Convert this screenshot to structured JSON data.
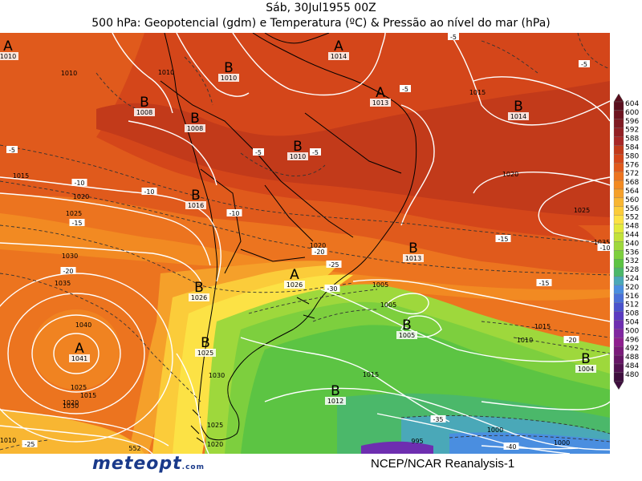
{
  "header": {
    "date": "Sáb, 30Jul1955 00Z",
    "subtitle": "500 hPa: Geopotencial (gdm) e Temperatura (ºC) & Pressão ao nível do mar (hPa)"
  },
  "footer": {
    "logo": "meteopt",
    "logo_suffix": ".com",
    "source": "NCEP/NCAR Reanalysis-1"
  },
  "legend": {
    "levels": [
      "604",
      "600",
      "596",
      "592",
      "588",
      "584",
      "580",
      "576",
      "572",
      "568",
      "564",
      "560",
      "556",
      "552",
      "548",
      "544",
      "540",
      "536",
      "532",
      "528",
      "524",
      "520",
      "516",
      "512",
      "508",
      "504",
      "500",
      "496",
      "492",
      "488",
      "484",
      "480"
    ],
    "colors": [
      "#5a0f1e",
      "#6d1420",
      "#801a22",
      "#932024",
      "#a82726",
      "#c23a1a",
      "#d4461a",
      "#e05a1c",
      "#ec741f",
      "#f28a22",
      "#f5a02a",
      "#f8b632",
      "#fbcc3a",
      "#fce245",
      "#e2ea3c",
      "#c2e23a",
      "#9ed83c",
      "#7dcf3e",
      "#5cc443",
      "#4bb86a",
      "#4aa8b8",
      "#4a8ee0",
      "#4a70d8",
      "#4a52cc",
      "#5a3ac0",
      "#6e2eb0",
      "#8026a0",
      "#8e1e8e",
      "#7a1a7a",
      "#661666",
      "#521252",
      "#3e0e3e"
    ]
  },
  "pressure_centers": [
    {
      "type": "A",
      "value": "1010"
    },
    {
      "type": "A",
      "value": "1014"
    },
    {
      "type": "B",
      "value": "1010"
    },
    {
      "type": "B",
      "value": "1008"
    },
    {
      "type": "B",
      "value": "1008"
    },
    {
      "type": "A",
      "value": "1013"
    },
    {
      "type": "B",
      "value": "1014"
    },
    {
      "type": "B",
      "value": "1010"
    },
    {
      "type": "B",
      "value": "1016"
    },
    {
      "type": "B",
      "value": "1013"
    },
    {
      "type": "A",
      "value": "1026"
    },
    {
      "type": "B",
      "value": "1026"
    },
    {
      "type": "B",
      "value": "1005"
    },
    {
      "type": "A",
      "value": "1041"
    },
    {
      "type": "B",
      "value": "1025"
    },
    {
      "type": "B",
      "value": "1004"
    },
    {
      "type": "B",
      "value": "1012"
    }
  ],
  "isobar_labels": [
    "1015",
    "1010",
    "1020",
    "1025",
    "1030",
    "1035",
    "1040",
    "1015",
    "1020",
    "1025",
    "1020",
    "1030",
    "1025",
    "1020",
    "1010",
    "1005",
    "1000",
    "995",
    "1015",
    "1015",
    "1010",
    "1015",
    "1020",
    "1025",
    "1035",
    "1030",
    "1005",
    "1000",
    "1010"
  ],
  "temperature_labels": [
    "-5",
    "-5",
    "-5",
    "-5",
    "-5",
    "-10",
    "-15",
    "-10",
    "-10",
    "-15",
    "-20",
    "-25",
    "-30",
    "-20",
    "-25",
    "-10",
    "-15",
    "-20",
    "-35",
    "-40",
    "-5"
  ],
  "geopotential_labels": [
    "552"
  ]
}
